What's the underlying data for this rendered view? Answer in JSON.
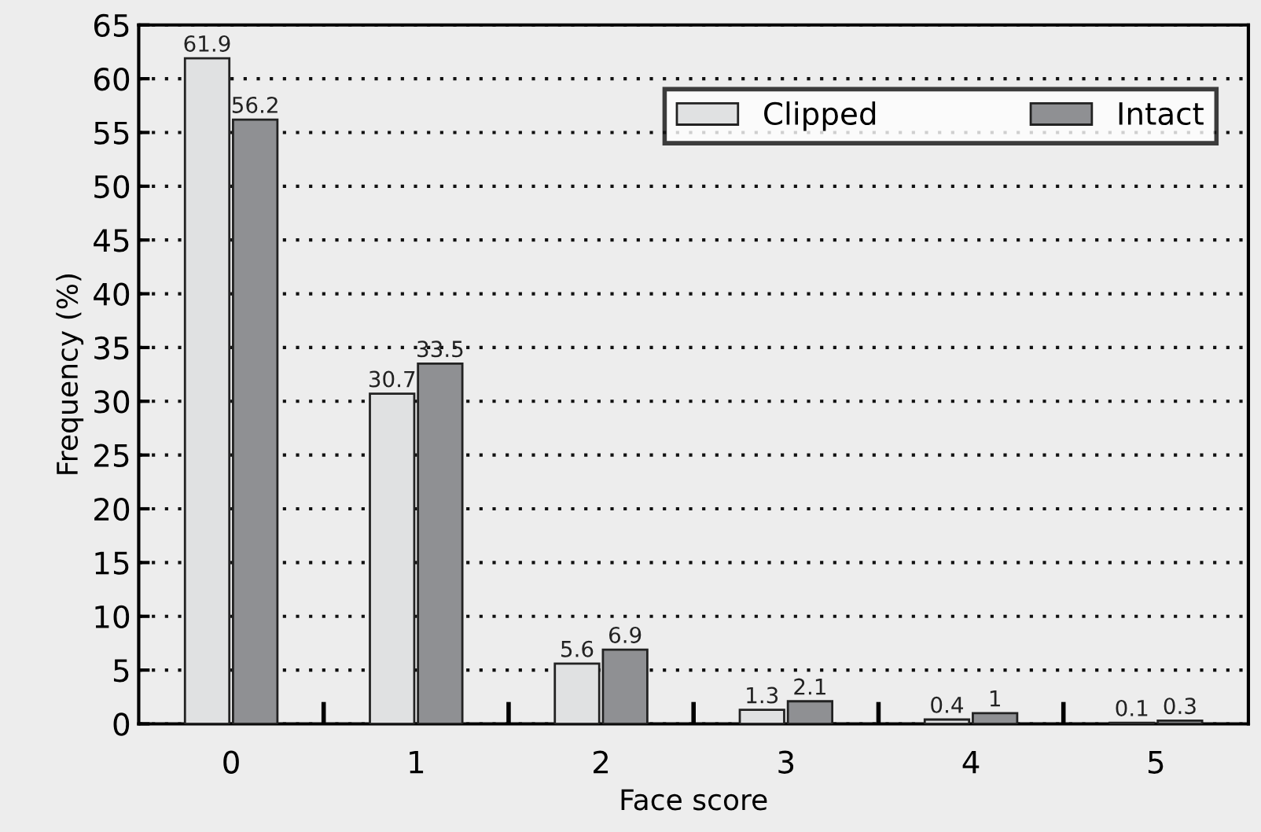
{
  "chart_data": {
    "type": "bar",
    "xlabel": "Face score",
    "ylabel": "Frequency (%)",
    "categories": [
      "0",
      "1",
      "2",
      "3",
      "4",
      "5"
    ],
    "series": [
      {
        "name": "Clipped",
        "color": "#e0e1e2",
        "values": [
          61.9,
          30.7,
          5.6,
          1.3,
          0.4,
          0.1
        ]
      },
      {
        "name": "Intact",
        "color": "#8f9093",
        "values": [
          56.2,
          33.5,
          6.9,
          2.1,
          1,
          0.3
        ]
      }
    ],
    "ylim": [
      0,
      65
    ],
    "yticks": [
      0,
      5,
      10,
      15,
      20,
      25,
      30,
      35,
      40,
      45,
      50,
      55,
      60,
      65
    ],
    "grid": "y",
    "legend": "top right",
    "data_labels": true
  }
}
